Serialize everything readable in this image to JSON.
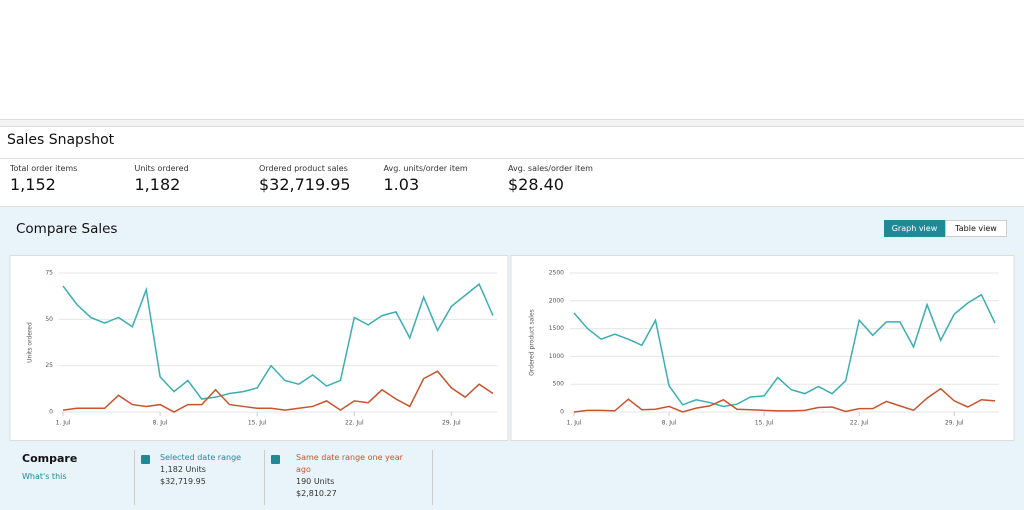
{
  "header": {
    "title": "Sales Snapshot"
  },
  "metrics": [
    {
      "label": "Total order items",
      "value": "1,152"
    },
    {
      "label": "Units ordered",
      "value": "1,182"
    },
    {
      "label": "Ordered product sales",
      "value": "$32,719.95"
    },
    {
      "label": "Avg. units/order item",
      "value": "1.03"
    },
    {
      "label": "Avg. sales/order item",
      "value": "$28.40"
    }
  ],
  "compare_sales": {
    "title": "Compare Sales",
    "buttons": [
      "Graph view",
      "Table view"
    ]
  },
  "chart_data": [
    {
      "type": "line",
      "ylabel": "Units ordered",
      "categories": [
        "1. Jul",
        null,
        null,
        null,
        null,
        null,
        null,
        "8. Jul",
        null,
        null,
        null,
        null,
        null,
        null,
        "15. Jul",
        null,
        null,
        null,
        null,
        null,
        null,
        "22. Jul",
        null,
        null,
        null,
        null,
        null,
        null,
        "29. Jul",
        null,
        null,
        null
      ],
      "ylim": [
        0,
        75
      ],
      "yticks": [
        0,
        25,
        50,
        75
      ],
      "grid": true,
      "series": [
        {
          "color": "#3aaeb3",
          "values": [
            68,
            58,
            51,
            48,
            51,
            46,
            66,
            19,
            11,
            17,
            7,
            8,
            10,
            11,
            13,
            25,
            17,
            15,
            20,
            14,
            17,
            51,
            47,
            52,
            54,
            40,
            62,
            44,
            57,
            63,
            69,
            52
          ]
        },
        {
          "color": "#c9532c",
          "values": [
            1,
            2,
            2,
            2,
            9,
            4,
            3,
            4,
            0,
            4,
            4,
            12,
            4,
            3,
            2,
            2,
            1,
            2,
            3,
            6,
            1,
            6,
            5,
            12,
            7,
            3,
            18,
            22,
            13,
            8,
            15,
            10
          ]
        }
      ]
    },
    {
      "type": "line",
      "ylabel": "Ordered product sales",
      "categories": [
        "1. Jul",
        null,
        null,
        null,
        null,
        null,
        null,
        "8. Jul",
        null,
        null,
        null,
        null,
        null,
        null,
        "15. Jul",
        null,
        null,
        null,
        null,
        null,
        null,
        "22. Jul",
        null,
        null,
        null,
        null,
        null,
        null,
        "29. Jul",
        null,
        null,
        null
      ],
      "ylim": [
        0,
        2500
      ],
      "yticks": [
        0,
        500,
        1000,
        1500,
        2000,
        2500
      ],
      "grid": true,
      "series": [
        {
          "color": "#3aaeb3",
          "values": [
            1780,
            1500,
            1310,
            1400,
            1310,
            1200,
            1650,
            470,
            130,
            220,
            170,
            100,
            140,
            270,
            290,
            620,
            400,
            330,
            460,
            330,
            560,
            1650,
            1380,
            1620,
            1620,
            1170,
            1930,
            1290,
            1760,
            1960,
            2110,
            1600
          ]
        },
        {
          "color": "#c9532c",
          "values": [
            0,
            30,
            30,
            20,
            230,
            40,
            50,
            100,
            0,
            70,
            110,
            220,
            50,
            40,
            30,
            20,
            20,
            30,
            80,
            90,
            10,
            60,
            60,
            190,
            110,
            30,
            250,
            420,
            200,
            90,
            220,
            200
          ]
        }
      ]
    }
  ],
  "compare": {
    "title": "Compare",
    "link": "What's this",
    "items": [
      {
        "label": "Selected date range",
        "units": "1,182 Units",
        "sales": "$32,719.95"
      },
      {
        "label": "Same date range one year ago",
        "units": "190 Units",
        "sales": "$2,810.27"
      }
    ]
  }
}
